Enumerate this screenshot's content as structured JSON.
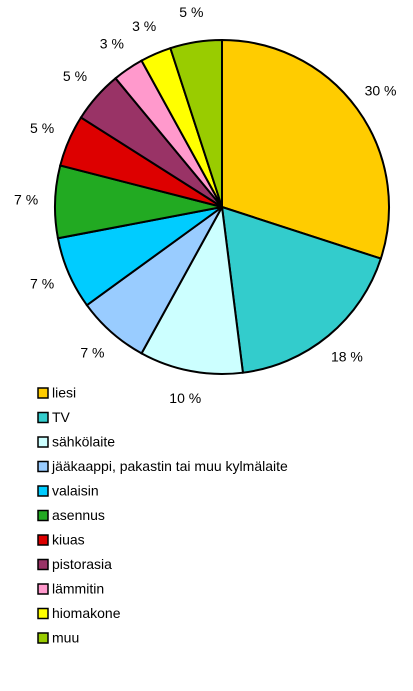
{
  "chart_data": {
    "type": "pie",
    "categories": [
      "liesi",
      "TV",
      "sähkölaite",
      "jääkaappi, pakastin tai muu kylmälaite",
      "valaisin",
      "asennus",
      "kiuas",
      "pistorasia",
      "lämmitin",
      "hiomakone",
      "muu"
    ],
    "values": [
      30,
      18,
      10,
      7,
      7,
      7,
      5,
      5,
      3,
      3,
      5
    ],
    "value_labels": [
      "30 %",
      "18 %",
      "10 %",
      "7 %",
      "7 %",
      "7 %",
      "5 %",
      "5 %",
      "3 %",
      "3 %",
      "5 %"
    ],
    "colors": [
      "#ffcc00",
      "#33cccc",
      "#ccffff",
      "#99ccff",
      "#00ccff",
      "#22aa22",
      "#dd0000",
      "#993366",
      "#ff99cc",
      "#ffff00",
      "#99cc00"
    ],
    "legend": "bottom"
  }
}
